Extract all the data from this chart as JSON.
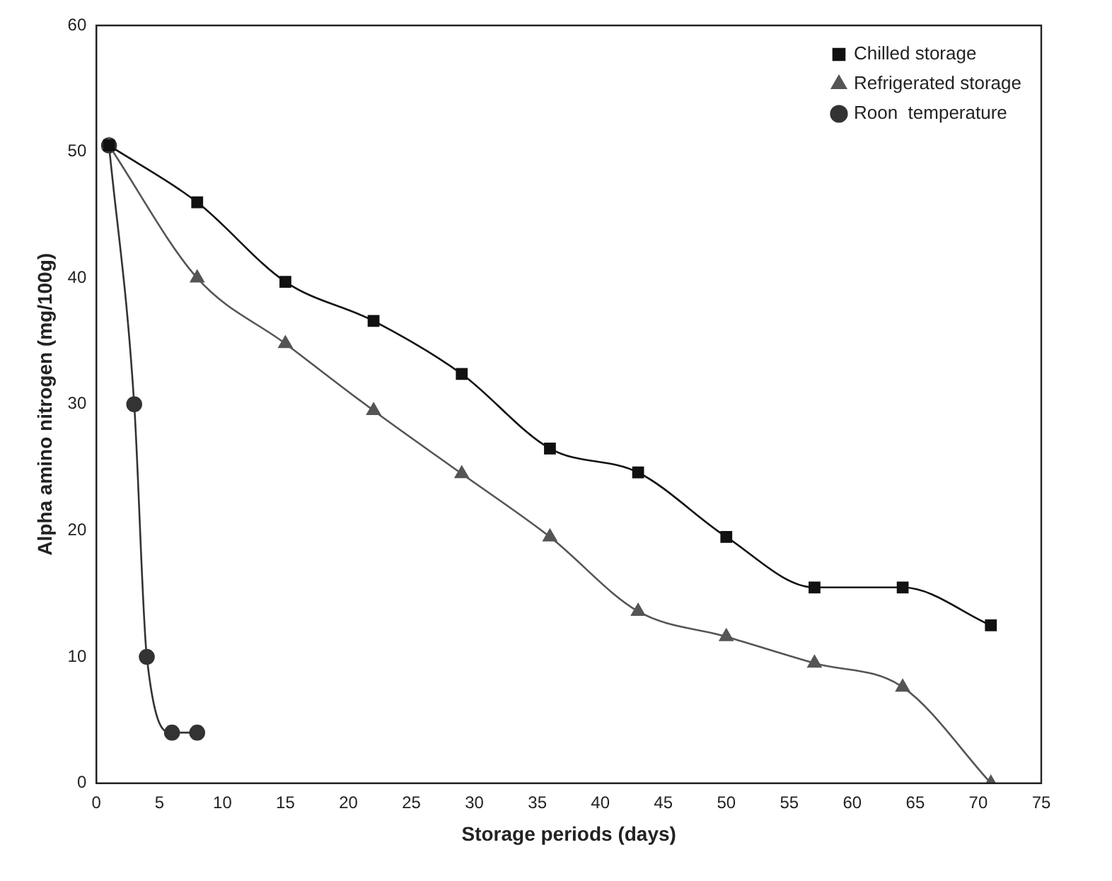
{
  "chart_data": {
    "type": "line",
    "xlabel": "Storage periods (days)",
    "ylabel": "Alpha amino nitrogen (mg/100g)",
    "xlim": [
      0,
      75
    ],
    "xticks": [
      0,
      5,
      10,
      15,
      20,
      25,
      30,
      35,
      40,
      45,
      50,
      55,
      60,
      65,
      70,
      75
    ],
    "ylim": [
      0,
      60
    ],
    "yticks": [
      0,
      10,
      20,
      30,
      40,
      50,
      60
    ],
    "grid": false,
    "legend": "top right",
    "series": [
      {
        "name": "Chilled storage",
        "color": "#111111",
        "marker": "square",
        "x": [
          1,
          8,
          15,
          22,
          29,
          36,
          43,
          50,
          57,
          64,
          71
        ],
        "values": [
          50.5,
          46,
          39.7,
          36.6,
          32.4,
          26.5,
          24.6,
          19.5,
          15.5,
          15.5,
          12.5
        ]
      },
      {
        "name": "Refrigerated storage",
        "color": "#555555",
        "marker": "triangle",
        "x": [
          1,
          8,
          15,
          22,
          29,
          36,
          43,
          50,
          57,
          64,
          71
        ],
        "values": [
          50.5,
          40,
          34.8,
          29.5,
          24.5,
          19.5,
          13.6,
          11.6,
          9.5,
          7.6,
          0
        ]
      },
      {
        "name": "Roon  temperature",
        "color": "#333333",
        "marker": "circle",
        "x": [
          1,
          3,
          4,
          6,
          8
        ],
        "values": [
          50.5,
          30,
          10,
          4,
          4
        ]
      }
    ]
  }
}
